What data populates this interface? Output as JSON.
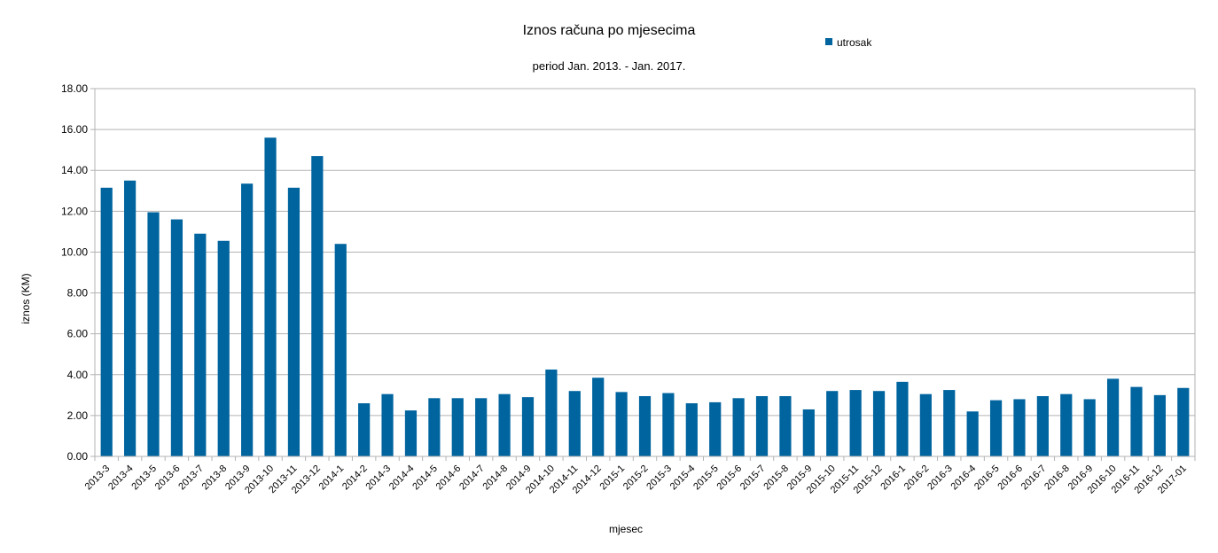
{
  "chart_data": {
    "type": "bar",
    "title": "Iznos računa po mjesecima",
    "subtitle": "period Jan. 2013. - Jan. 2017.",
    "xlabel": "mjesec",
    "ylabel": "iznos (KM)",
    "ylim": [
      0,
      18
    ],
    "yticks": [
      "0.00",
      "2.00",
      "4.00",
      "6.00",
      "8.00",
      "10.00",
      "12.00",
      "14.00",
      "16.00",
      "18.00"
    ],
    "grid": true,
    "legend": "top-right",
    "color": "#00649f",
    "categories": [
      "2013-3",
      "2013-4",
      "2013-5",
      "2013-6",
      "2013-7",
      "2013-8",
      "2013-9",
      "2013-10",
      "2013-11",
      "2013-12",
      "2014-1",
      "2014-2",
      "2014-3",
      "2014-4",
      "2014-5",
      "2014-6",
      "2014-7",
      "2014-8",
      "2014-9",
      "2014-10",
      "2014-11",
      "2014-12",
      "2015-1",
      "2015-2",
      "2015-3",
      "2015-4",
      "2015-5",
      "2015-6",
      "2015-7",
      "2015-8",
      "2015-9",
      "2015-10",
      "2015-11",
      "2015-12",
      "2016-1",
      "2016-2",
      "2016-3",
      "2016-4",
      "2016-5",
      "2016-6",
      "2016-7",
      "2016-8",
      "2016-9",
      "2016-10",
      "2016-11",
      "2016-12",
      "2017-01"
    ],
    "series": [
      {
        "name": "utrosak",
        "values": [
          13.15,
          13.5,
          11.95,
          11.6,
          10.9,
          10.55,
          13.35,
          15.6,
          13.15,
          14.7,
          10.4,
          2.6,
          3.05,
          2.25,
          2.85,
          2.85,
          2.85,
          3.05,
          2.9,
          4.25,
          3.2,
          3.85,
          3.15,
          2.95,
          3.1,
          2.6,
          2.65,
          2.85,
          2.95,
          2.95,
          2.3,
          3.2,
          3.25,
          3.2,
          3.65,
          3.05,
          3.25,
          2.2,
          2.75,
          2.8,
          2.95,
          3.05,
          2.8,
          3.8,
          3.4,
          3.0,
          3.35
        ]
      }
    ]
  }
}
